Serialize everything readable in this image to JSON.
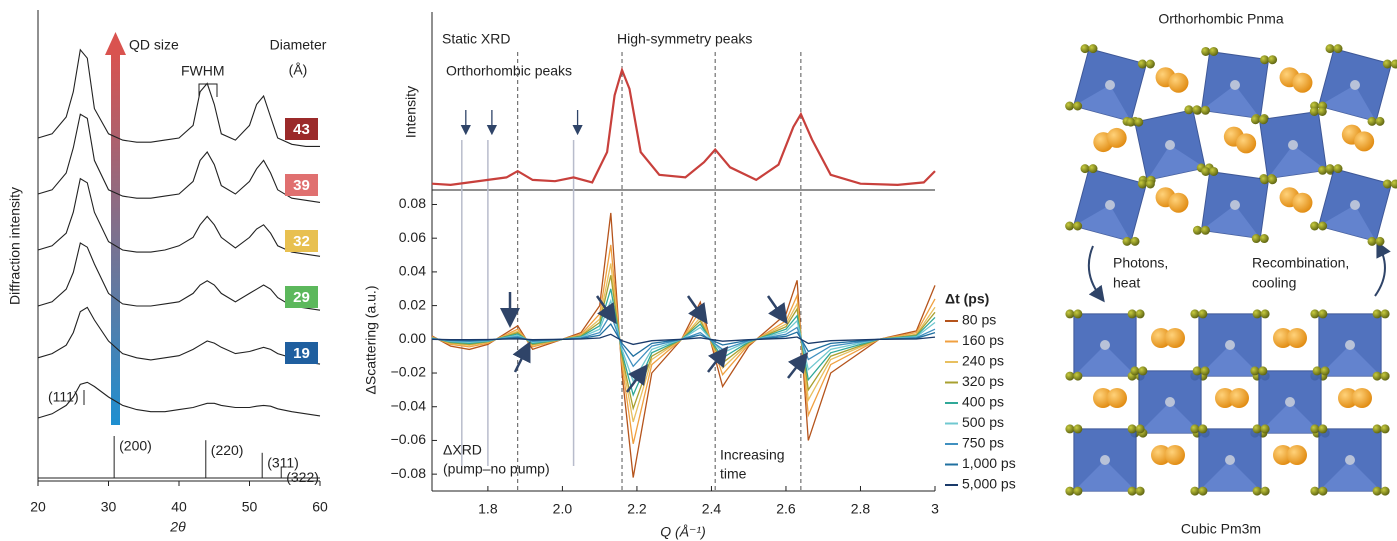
{
  "chart_data": [
    {
      "type": "line",
      "xlabel": "2θ",
      "ylabel": "Diffraction intensity",
      "xlim": [
        20,
        60
      ],
      "xticks": [
        20,
        30,
        40,
        50,
        60
      ],
      "annotations": {
        "size_arrow": "QD size",
        "fwhm": "FWHM",
        "diameter": [
          "Diameter",
          "(Å)"
        ],
        "peak_111": "(111)"
      },
      "x": [
        20,
        22,
        24,
        25,
        26,
        27,
        28,
        30,
        32,
        34,
        36,
        38,
        40,
        42,
        43,
        44,
        45,
        46,
        48,
        50,
        51,
        52,
        53,
        54,
        56,
        58,
        60
      ],
      "series": [
        {
          "name": "43",
          "color": "#222222",
          "label_color": "#9b2a2a",
          "values": [
            0.5,
            0.6,
            1.0,
            1.6,
            2.6,
            2.4,
            1.2,
            0.6,
            0.45,
            0.4,
            0.4,
            0.45,
            0.5,
            0.8,
            1.6,
            1.8,
            1.3,
            0.6,
            0.45,
            0.8,
            1.3,
            1.5,
            1.0,
            0.5,
            0.35,
            0.3,
            0.3
          ]
        },
        {
          "name": "39",
          "color": "#222222",
          "label_color": "#e07070",
          "values": [
            0.5,
            0.6,
            1.0,
            1.6,
            2.4,
            2.3,
            1.3,
            0.6,
            0.45,
            0.4,
            0.4,
            0.45,
            0.5,
            0.8,
            1.3,
            1.5,
            1.2,
            0.7,
            0.5,
            0.8,
            1.1,
            1.3,
            1.0,
            0.6,
            0.4,
            0.35,
            0.3
          ]
        },
        {
          "name": "32",
          "color": "#222222",
          "label_color": "#e8c050",
          "values": [
            0.5,
            0.6,
            0.9,
            1.4,
            2.2,
            2.1,
            1.4,
            0.7,
            0.5,
            0.45,
            0.45,
            0.5,
            0.6,
            0.8,
            1.1,
            1.3,
            1.1,
            0.8,
            0.55,
            0.8,
            1.0,
            1.1,
            0.9,
            0.6,
            0.45,
            0.4,
            0.35
          ]
        },
        {
          "name": "29",
          "color": "#222222",
          "label_color": "#5cb85c",
          "values": [
            0.5,
            0.6,
            0.9,
            1.3,
            2.0,
            1.9,
            1.5,
            0.8,
            0.55,
            0.5,
            0.5,
            0.55,
            0.6,
            0.8,
            1.0,
            1.1,
            1.0,
            0.8,
            0.6,
            0.8,
            0.9,
            1.0,
            0.9,
            0.7,
            0.5,
            0.45,
            0.4
          ]
        },
        {
          "name": "19",
          "color": "#222222",
          "label_color": "#1f5f9f",
          "values": [
            0.6,
            0.7,
            0.9,
            1.2,
            1.7,
            1.8,
            1.5,
            1.0,
            0.7,
            0.6,
            0.55,
            0.6,
            0.65,
            0.8,
            0.9,
            1.0,
            0.95,
            0.85,
            0.7,
            0.75,
            0.8,
            0.85,
            0.8,
            0.7,
            0.6,
            0.5,
            0.45
          ]
        },
        {
          "name": null,
          "color": "#222222",
          "values": [
            0.5,
            0.6,
            0.8,
            1.0,
            1.3,
            1.35,
            1.25,
            1.0,
            0.8,
            0.7,
            0.65,
            0.65,
            0.7,
            0.75,
            0.8,
            0.85,
            0.85,
            0.8,
            0.75,
            0.75,
            0.78,
            0.8,
            0.78,
            0.72,
            0.65,
            0.6,
            0.55
          ]
        }
      ],
      "reference_peaks": {
        "x": [
          30.8,
          43.8,
          51.8,
          54.5
        ],
        "labels": [
          "(200)",
          "(220)",
          "(311)",
          "(322)"
        ],
        "values": [
          1,
          0.9,
          0.6,
          0.25
        ]
      }
    },
    {
      "type": "line",
      "ylabel": "Intensity",
      "annotations": {
        "static": "Static XRD",
        "high_symmetry": "High-symmetry peaks",
        "orthorhombic": "Orthorhombic peaks"
      },
      "x": [
        1.65,
        1.7,
        1.75,
        1.8,
        1.85,
        1.88,
        1.92,
        1.98,
        2.03,
        2.08,
        2.12,
        2.14,
        2.16,
        2.18,
        2.21,
        2.26,
        2.33,
        2.38,
        2.41,
        2.45,
        2.52,
        2.58,
        2.62,
        2.64,
        2.67,
        2.72,
        2.8,
        2.9,
        2.97,
        3.0
      ],
      "series": [
        {
          "color": "#c8403c",
          "values": [
            0.05,
            0.04,
            0.06,
            0.08,
            0.1,
            0.15,
            0.08,
            0.07,
            0.1,
            0.06,
            0.3,
            0.75,
            0.95,
            0.8,
            0.3,
            0.12,
            0.1,
            0.22,
            0.32,
            0.18,
            0.08,
            0.2,
            0.5,
            0.6,
            0.4,
            0.12,
            0.05,
            0.04,
            0.06,
            0.15
          ]
        }
      ],
      "high_symmetry_peaks": [
        1.88,
        2.16,
        2.41,
        2.64
      ],
      "orthorhombic_peaks": [
        1.73,
        1.8,
        2.03
      ]
    },
    {
      "type": "line",
      "xlabel": "Q (Å⁻¹)",
      "ylabel": "ΔScattering (a.u.)",
      "xlim": [
        1.65,
        3
      ],
      "ylim": [
        -0.09,
        0.088
      ],
      "xticks": [
        1.8,
        {
          "value": 2,
          "label": "2.0"
        },
        2.2,
        2.4,
        2.6,
        2.8,
        3
      ],
      "yticks": [
        {
          "value": -0.08,
          "label": "−0.08"
        },
        {
          "value": -0.06,
          "label": "−0.06"
        },
        {
          "value": -0.04,
          "label": "−0.04"
        },
        {
          "value": -0.02,
          "label": "−0.02"
        },
        {
          "value": 0,
          "label": "0.00"
        },
        0.02,
        0.04,
        0.06,
        0.08
      ],
      "legend_title": "Δt (ps)",
      "legend": "right",
      "annotations": {
        "delta_xrd": [
          "ΔXRD",
          "(pump–no pump)"
        ],
        "increasing_time": [
          "Increasing",
          "time"
        ]
      },
      "x": [
        1.65,
        1.7,
        1.75,
        1.8,
        1.88,
        1.92,
        2.0,
        2.05,
        2.1,
        2.13,
        2.16,
        2.19,
        2.24,
        2.32,
        2.37,
        2.43,
        2.5,
        2.6,
        2.63,
        2.66,
        2.72,
        2.85,
        2.95,
        3.0
      ],
      "series": [
        {
          "name": "80 ps",
          "color": "#b5541c",
          "values": [
            0.002,
            -0.004,
            -0.006,
            -0.003,
            0.008,
            -0.006,
            0,
            0.004,
            0.02,
            0.075,
            -0.02,
            -0.082,
            -0.02,
            0,
            0.022,
            -0.028,
            -0.004,
            0.015,
            0.035,
            -0.06,
            -0.02,
            0,
            0.005,
            0.032
          ]
        },
        {
          "name": "160 ps",
          "color": "#f0a040",
          "values": [
            0.0015,
            -0.003,
            -0.0045,
            -0.0023,
            0.006,
            -0.0045,
            0,
            0.003,
            0.015,
            0.056,
            -0.015,
            -0.062,
            -0.015,
            0,
            0.017,
            -0.021,
            -0.003,
            0.011,
            0.026,
            -0.045,
            -0.015,
            0,
            0.004,
            0.024
          ]
        },
        {
          "name": "240 ps",
          "color": "#e8c060",
          "values": [
            0.0012,
            -0.0024,
            -0.0036,
            -0.0018,
            0.0048,
            -0.0036,
            0,
            0.0024,
            0.012,
            0.045,
            -0.012,
            -0.049,
            -0.012,
            0,
            0.013,
            -0.017,
            -0.0024,
            0.009,
            0.021,
            -0.036,
            -0.012,
            0,
            0.003,
            0.019
          ]
        },
        {
          "name": "320 ps",
          "color": "#a8a030",
          "values": [
            0.001,
            -0.002,
            -0.003,
            -0.0015,
            0.004,
            -0.003,
            0,
            0.002,
            0.01,
            0.038,
            -0.01,
            -0.041,
            -0.01,
            0,
            0.011,
            -0.014,
            -0.002,
            0.0075,
            0.018,
            -0.03,
            -0.01,
            0,
            0.0025,
            0.016
          ]
        },
        {
          "name": "400 ps",
          "color": "#30a898",
          "values": [
            0.0008,
            -0.0016,
            -0.0024,
            -0.0012,
            0.0032,
            -0.0024,
            0,
            0.0016,
            0.008,
            0.03,
            -0.008,
            -0.033,
            -0.008,
            0,
            0.009,
            -0.011,
            -0.0016,
            0.006,
            0.014,
            -0.024,
            -0.008,
            0,
            0.002,
            0.013
          ]
        },
        {
          "name": "500 ps",
          "color": "#70c8d0",
          "values": [
            0.0006,
            -0.0012,
            -0.0018,
            -0.0009,
            0.0024,
            -0.0018,
            0,
            0.0012,
            0.006,
            0.023,
            -0.006,
            -0.025,
            -0.006,
            0,
            0.007,
            -0.008,
            -0.0012,
            0.0045,
            0.011,
            -0.018,
            -0.006,
            0,
            0.0015,
            0.01
          ]
        },
        {
          "name": "750 ps",
          "color": "#4090c0",
          "values": [
            0.0004,
            -0.0008,
            -0.0012,
            -0.0006,
            0.0016,
            -0.0012,
            0,
            0.0008,
            0.004,
            0.015,
            -0.004,
            -0.016,
            -0.004,
            0,
            0.004,
            -0.006,
            -0.0008,
            0.003,
            0.007,
            -0.012,
            -0.004,
            0,
            0.001,
            0.006
          ]
        },
        {
          "name": "1,000 ps",
          "color": "#2070a0",
          "values": [
            0.0002,
            -0.0005,
            -0.0007,
            -0.0004,
            0.001,
            -0.0007,
            0,
            0.0005,
            0.0024,
            0.009,
            -0.0024,
            -0.01,
            -0.0024,
            0,
            0.0026,
            -0.0034,
            -0.0005,
            0.0018,
            0.0042,
            -0.0072,
            -0.0024,
            0,
            0.0006,
            0.004
          ]
        },
        {
          "name": "5,000 ps",
          "color": "#1a3a6a",
          "values": [
            0,
            -0.0002,
            -0.0002,
            -0.0001,
            0.0003,
            -0.0002,
            0,
            0.0002,
            0.0008,
            0.003,
            -0.0008,
            -0.003,
            -0.0008,
            0,
            0.0009,
            -0.0011,
            -0.0002,
            0.0006,
            0.0014,
            -0.0024,
            -0.0008,
            0,
            0.0002,
            0.0013
          ]
        }
      ]
    }
  ],
  "diagram": {
    "top_label": "Orthorhombic Pnma",
    "bottom_label": "Cubic Pm3m",
    "forward": [
      "Photons,",
      "heat"
    ],
    "backward": [
      "Recombination,",
      "cooling"
    ]
  }
}
